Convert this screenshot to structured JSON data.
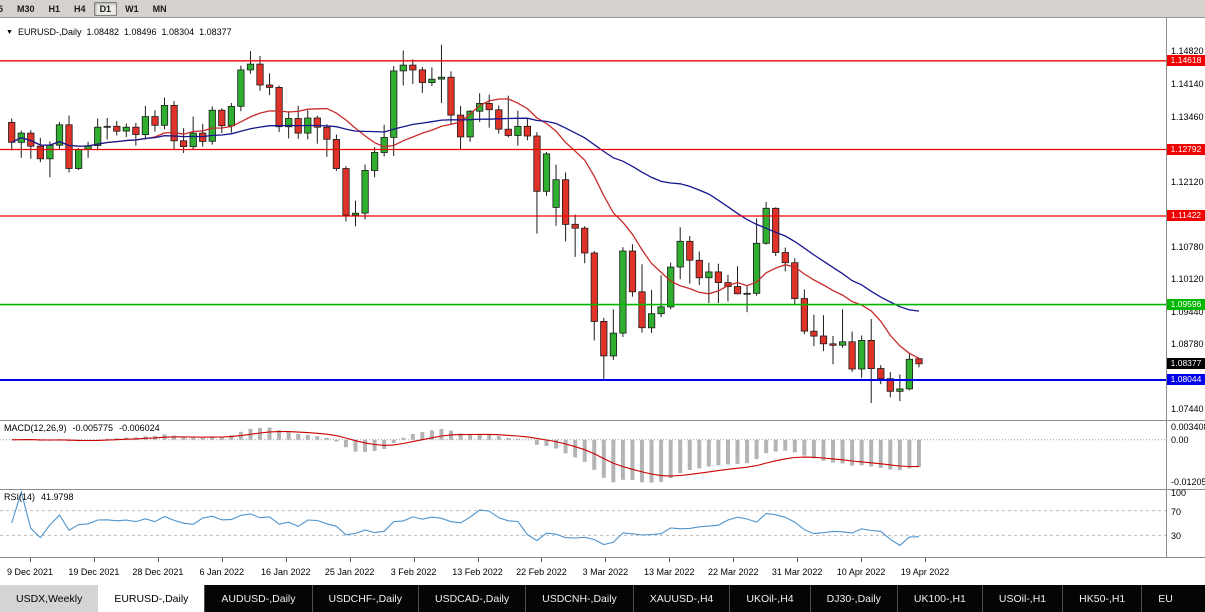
{
  "toolbar": {
    "timeframes": [
      "5",
      "M30",
      "H1",
      "H4",
      "D1",
      "W1",
      "MN"
    ],
    "active": "D1"
  },
  "header": {
    "dropdown_icon": "▼",
    "symbol": "EURUSD-,Daily",
    "open": "1.08482",
    "high": "1.08496",
    "low": "1.08304",
    "close": "1.08377"
  },
  "indicators": {
    "macd": {
      "title": "MACD(12,26,9)",
      "main_value": "-0.005775",
      "signal_value": "-0.006024",
      "axis_max": "0.003408",
      "axis_zero": "0.00",
      "axis_min": "-0.012054"
    },
    "rsi": {
      "title": "RSI(14)",
      "value": "41.9798",
      "axis": [
        "100",
        "70",
        "30"
      ]
    }
  },
  "tabs": [
    {
      "label": "USDX,Weekly",
      "state": "light"
    },
    {
      "label": "EURUSD-,Daily",
      "state": "active"
    },
    {
      "label": "AUDUSD-,Daily",
      "state": "dark"
    },
    {
      "label": "USDCHF-,Daily",
      "state": "dark"
    },
    {
      "label": "USDCAD-,Daily",
      "state": "dark"
    },
    {
      "label": "USDCNH-,Daily",
      "state": "dark"
    },
    {
      "label": "XAUUSD-,H4",
      "state": "dark"
    },
    {
      "label": "UKOil-,H4",
      "state": "dark"
    },
    {
      "label": "DJ30-,Daily",
      "state": "dark"
    },
    {
      "label": "UK100-,H1",
      "state": "dark"
    },
    {
      "label": "USOil-,H1",
      "state": "dark"
    },
    {
      "label": "HK50-,H1",
      "state": "dark"
    },
    {
      "label": "EU",
      "state": "dark"
    }
  ],
  "chart_data": {
    "type": "candlestick",
    "symbol": "EURUSD-",
    "timeframe": "Daily",
    "price_axis": {
      "ylim": [
        1.0722,
        1.155
      ],
      "ticks": [
        "1.14820",
        "1.14140",
        "1.13460",
        "1.12120",
        "1.10780",
        "1.10120",
        "1.09440",
        "1.08780",
        "1.07440"
      ],
      "up_color": "#2fae2f",
      "down_color": "#df332a",
      "wick_color": "#1c1c1c"
    },
    "levels": [
      {
        "label": "1.14618",
        "value": 1.14618,
        "color": "#f00000",
        "width": 1.3
      },
      {
        "label": "1.12792",
        "value": 1.12792,
        "color": "#f00000",
        "width": 1.3
      },
      {
        "label": "1.11422",
        "value": 1.11422,
        "color": "#f00000",
        "width": 1.3
      },
      {
        "label": "1.09596",
        "value": 1.09596,
        "color": "#00b800",
        "width": 1.6
      },
      {
        "label": "1.08044",
        "value": 1.08044,
        "color": "#0000e8",
        "width": 1.9
      }
    ],
    "current_price": {
      "label": "1.08377",
      "value": 1.08377,
      "color": "#000000"
    },
    "moving_averages": [
      {
        "type": "sma",
        "period": 13,
        "color": "#c82a2a"
      },
      {
        "type": "sma",
        "period": 34,
        "color": "#16168f"
      }
    ],
    "macd": {
      "fast": 12,
      "slow": 26,
      "signal": 9,
      "hist_color": "#b4b4b4",
      "signal_color": "#cc0000"
    },
    "rsi": {
      "period": 14,
      "color": "#4f94cd",
      "levels": [
        70,
        30
      ]
    },
    "date_labels": [
      "9 Dec 2021",
      "19 Dec 2021",
      "28 Dec 2021",
      "6 Jan 2022",
      "16 Jan 2022",
      "25 Jan 2022",
      "3 Feb 2022",
      "13 Feb 2022",
      "22 Feb 2022",
      "3 Mar 2022",
      "13 Mar 2022",
      "22 Mar 2022",
      "31 Mar 2022",
      "10 Apr 2022",
      "19 Apr 2022"
    ],
    "candles": [
      [
        1.1335,
        1.1343,
        1.1277,
        1.1294
      ],
      [
        1.1294,
        1.1318,
        1.1262,
        1.1313
      ],
      [
        1.1313,
        1.1319,
        1.126,
        1.1286
      ],
      [
        1.1286,
        1.1303,
        1.1253,
        1.126
      ],
      [
        1.126,
        1.1296,
        1.1222,
        1.1288
      ],
      [
        1.1288,
        1.1336,
        1.128,
        1.133
      ],
      [
        1.133,
        1.1349,
        1.1232,
        1.124
      ],
      [
        1.124,
        1.1282,
        1.1237,
        1.1279
      ],
      [
        1.1279,
        1.1295,
        1.1262,
        1.1287
      ],
      [
        1.1287,
        1.1343,
        1.1277,
        1.1325
      ],
      [
        1.1325,
        1.1344,
        1.13,
        1.1327
      ],
      [
        1.1327,
        1.1338,
        1.1308,
        1.1317
      ],
      [
        1.1317,
        1.1333,
        1.1305,
        1.1325
      ],
      [
        1.1325,
        1.1334,
        1.1287,
        1.131
      ],
      [
        1.131,
        1.1369,
        1.13,
        1.1347
      ],
      [
        1.1347,
        1.136,
        1.1316,
        1.1329
      ],
      [
        1.1329,
        1.1386,
        1.1321,
        1.137
      ],
      [
        1.137,
        1.1379,
        1.1279,
        1.1297
      ],
      [
        1.1297,
        1.1323,
        1.1272,
        1.1285
      ],
      [
        1.1285,
        1.1347,
        1.128,
        1.1313
      ],
      [
        1.1313,
        1.1332,
        1.1285,
        1.1296
      ],
      [
        1.1296,
        1.1368,
        1.1289,
        1.136
      ],
      [
        1.136,
        1.1364,
        1.1313,
        1.1328
      ],
      [
        1.1328,
        1.1375,
        1.1314,
        1.1368
      ],
      [
        1.1368,
        1.1452,
        1.1358,
        1.1443
      ],
      [
        1.1443,
        1.1482,
        1.1435,
        1.1455
      ],
      [
        1.1455,
        1.1472,
        1.14,
        1.1412
      ],
      [
        1.1412,
        1.1436,
        1.1391,
        1.1407
      ],
      [
        1.1407,
        1.1411,
        1.1315,
        1.1326
      ],
      [
        1.1326,
        1.1358,
        1.1302,
        1.1343
      ],
      [
        1.1343,
        1.1369,
        1.1301,
        1.1313
      ],
      [
        1.1313,
        1.136,
        1.13,
        1.1344
      ],
      [
        1.1344,
        1.1349,
        1.1291,
        1.1325
      ],
      [
        1.1325,
        1.1331,
        1.1264,
        1.13
      ],
      [
        1.13,
        1.131,
        1.1235,
        1.124
      ],
      [
        1.124,
        1.1245,
        1.1131,
        1.1144
      ],
      [
        1.1144,
        1.1174,
        1.1121,
        1.1148
      ],
      [
        1.1148,
        1.1248,
        1.1135,
        1.1236
      ],
      [
        1.1236,
        1.1284,
        1.1222,
        1.1273
      ],
      [
        1.1273,
        1.133,
        1.1265,
        1.1304
      ],
      [
        1.1304,
        1.1451,
        1.1266,
        1.1441
      ],
      [
        1.1441,
        1.1483,
        1.1411,
        1.1453
      ],
      [
        1.1453,
        1.1465,
        1.1414,
        1.1443
      ],
      [
        1.1443,
        1.1449,
        1.1396,
        1.1417
      ],
      [
        1.1417,
        1.1448,
        1.141,
        1.1424
      ],
      [
        1.1424,
        1.1495,
        1.1375,
        1.1428
      ],
      [
        1.1428,
        1.144,
        1.133,
        1.135
      ],
      [
        1.135,
        1.1369,
        1.128,
        1.1305
      ],
      [
        1.1305,
        1.136,
        1.1295,
        1.1358
      ],
      [
        1.1358,
        1.1395,
        1.1336,
        1.1374
      ],
      [
        1.1374,
        1.1392,
        1.1324,
        1.1361
      ],
      [
        1.1361,
        1.137,
        1.1312,
        1.1321
      ],
      [
        1.1321,
        1.139,
        1.1304,
        1.1308
      ],
      [
        1.1308,
        1.1359,
        1.1287,
        1.1327
      ],
      [
        1.1327,
        1.1343,
        1.1298,
        1.1307
      ],
      [
        1.1307,
        1.1315,
        1.1106,
        1.1193
      ],
      [
        1.1193,
        1.1274,
        1.1184,
        1.127
      ],
      [
        1.116,
        1.1248,
        1.1122,
        1.1217
      ],
      [
        1.1217,
        1.1232,
        1.109,
        1.1125
      ],
      [
        1.1125,
        1.1145,
        1.1058,
        1.1117
      ],
      [
        1.1117,
        1.1121,
        1.1045,
        1.1066
      ],
      [
        1.1066,
        1.107,
        1.0886,
        1.0925
      ],
      [
        1.0925,
        1.0932,
        1.0806,
        1.0854
      ],
      [
        1.0854,
        1.095,
        1.0846,
        1.0901
      ],
      [
        1.0901,
        1.1078,
        1.0893,
        1.107
      ],
      [
        1.107,
        1.1084,
        1.0976,
        1.0986
      ],
      [
        1.0986,
        1.1043,
        1.0902,
        1.0912
      ],
      [
        1.0912,
        1.099,
        1.0901,
        1.0941
      ],
      [
        1.0941,
        1.102,
        1.0934,
        1.0955
      ],
      [
        1.0955,
        1.1046,
        1.095,
        1.1037
      ],
      [
        1.1037,
        1.1119,
        1.1012,
        1.109
      ],
      [
        1.109,
        1.1101,
        1.1003,
        1.1051
      ],
      [
        1.1051,
        1.1069,
        1.1,
        1.1015
      ],
      [
        1.1015,
        1.1046,
        1.0963,
        1.1027
      ],
      [
        1.1027,
        1.1044,
        1.0963,
        1.1005
      ],
      [
        1.1005,
        1.1021,
        1.0966,
        1.0997
      ],
      [
        1.0997,
        1.1039,
        1.0981,
        1.0982
      ],
      [
        1.0982,
        1.0999,
        1.0944,
        1.0983
      ],
      [
        1.0983,
        1.1137,
        1.0978,
        1.1086
      ],
      [
        1.1086,
        1.1171,
        1.1083,
        1.1158
      ],
      [
        1.1158,
        1.116,
        1.106,
        1.1067
      ],
      [
        1.1067,
        1.1077,
        1.1028,
        1.1046
      ],
      [
        1.1046,
        1.1055,
        1.0961,
        1.0972
      ],
      [
        1.0972,
        1.0991,
        1.0899,
        1.0905
      ],
      [
        1.0905,
        1.0939,
        1.0874,
        1.0895
      ],
      [
        1.0895,
        1.0938,
        1.0864,
        1.0879
      ],
      [
        1.0879,
        1.0895,
        1.0837,
        1.0876
      ],
      [
        1.0876,
        1.095,
        1.0871,
        1.0883
      ],
      [
        1.0883,
        1.0904,
        1.0821,
        1.0827
      ],
      [
        1.0827,
        1.0896,
        1.0809,
        1.0886
      ],
      [
        1.0886,
        1.093,
        1.0757,
        1.0828
      ],
      [
        1.0828,
        1.0835,
        1.0796,
        1.0807
      ],
      [
        1.0807,
        1.0821,
        1.0769,
        1.0781
      ],
      [
        1.0781,
        1.0816,
        1.0761,
        1.0786
      ],
      [
        1.0786,
        1.0858,
        1.0783,
        1.0847
      ],
      [
        1.08482,
        1.08496,
        1.08304,
        1.08377
      ]
    ]
  }
}
